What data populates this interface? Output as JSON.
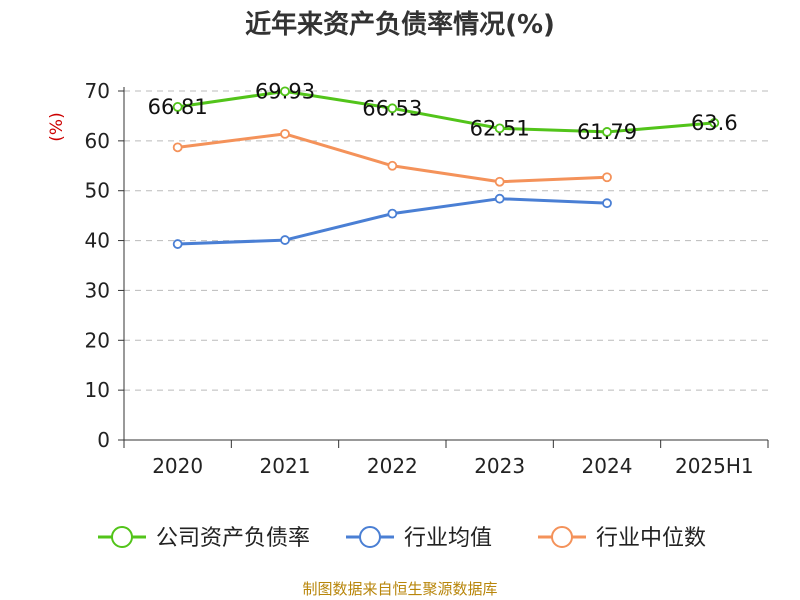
{
  "chart_data": {
    "type": "line",
    "title": "近年来资产负债率情况(%)",
    "ylabel": "(%)",
    "ylim": [
      0,
      70
    ],
    "yticks": [
      0,
      10,
      20,
      30,
      40,
      50,
      60,
      70
    ],
    "categories": [
      "2020",
      "2021",
      "2022",
      "2023",
      "2024",
      "2025H1"
    ],
    "grid": true,
    "legend_position": "bottom",
    "series": [
      {
        "name": "公司资产负债率",
        "color": "#52c41a",
        "values": [
          66.81,
          69.93,
          66.53,
          62.51,
          61.79,
          63.6
        ],
        "labels": [
          "66.81",
          "69.93",
          "66.53",
          "62.51",
          "61.79",
          "63.6"
        ]
      },
      {
        "name": "行业均值",
        "color": "#4a7fd4",
        "values": [
          39.3,
          40.1,
          45.4,
          48.4,
          47.5,
          null
        ]
      },
      {
        "name": "行业中位数",
        "color": "#f4925a",
        "values": [
          58.7,
          61.4,
          55.0,
          51.8,
          52.7,
          null
        ]
      }
    ]
  },
  "source": "制图数据来自恒生聚源数据库"
}
